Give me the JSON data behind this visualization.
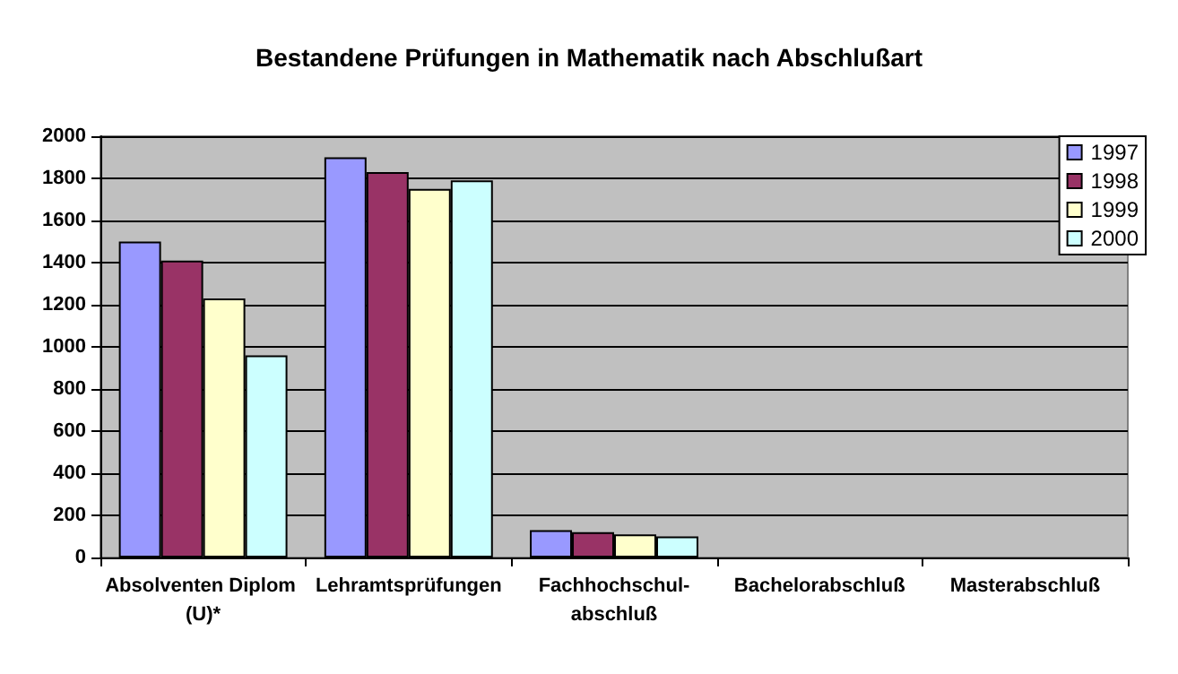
{
  "chart_data": {
    "type": "bar",
    "title": "Bestandene Prüfungen in Mathematik nach Abschlußart",
    "categories": [
      "Absolventen Diplom (U)*",
      "Lehramtsprüfungen",
      "Fachhochschul-abschluß",
      "Bachelorabschluß",
      "Masterabschluß"
    ],
    "series": [
      {
        "name": "1997",
        "color": "#9999ff",
        "values": [
          1500,
          1900,
          130,
          null,
          null
        ]
      },
      {
        "name": "1998",
        "color": "#993366",
        "values": [
          1410,
          1830,
          120,
          null,
          null
        ]
      },
      {
        "name": "1999",
        "color": "#ffffcc",
        "values": [
          1230,
          1750,
          110,
          null,
          null
        ]
      },
      {
        "name": "2000",
        "color": "#ccffff",
        "values": [
          960,
          1790,
          100,
          null,
          null
        ]
      }
    ],
    "ylim": [
      0,
      2000
    ],
    "yticks": [
      0,
      200,
      400,
      600,
      800,
      1000,
      1200,
      1400,
      1600,
      1800,
      2000
    ],
    "grid": "y",
    "legend": "top right"
  }
}
